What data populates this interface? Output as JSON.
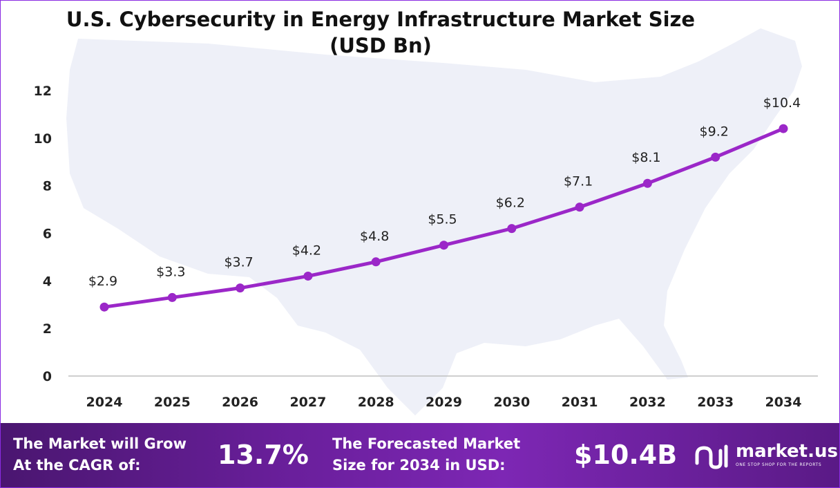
{
  "title": "U.S. Cybersecurity in Energy Infrastructure Market Size (USD Bn)",
  "colors": {
    "line": "#9b27c8",
    "map": "#eef0f8",
    "axis": "#bfbfbf",
    "footer": "#6a1f9c"
  },
  "chart_data": {
    "type": "line",
    "categories": [
      "2024",
      "2025",
      "2026",
      "2027",
      "2028",
      "2029",
      "2030",
      "2031",
      "2032",
      "2033",
      "2034"
    ],
    "values": [
      2.9,
      3.3,
      3.7,
      4.2,
      4.8,
      5.5,
      6.2,
      7.1,
      8.1,
      9.2,
      10.4
    ],
    "data_labels": [
      "$2.9",
      "$3.3",
      "$3.7",
      "$4.2",
      "$4.8",
      "$5.5",
      "$6.2",
      "$7.1",
      "$8.1",
      "$9.2",
      "$10.4"
    ],
    "yticks": [
      "0",
      "2",
      "4",
      "6",
      "8",
      "10",
      "12"
    ],
    "ylim": [
      0,
      12
    ],
    "grid": false,
    "legend": "none"
  },
  "footer": {
    "cagr_label_1": "The Market will Grow",
    "cagr_label_2": "At the CAGR of:",
    "cagr_value": "13.7%",
    "forecast_label_1": "The Forecasted Market",
    "forecast_label_2": "Size for 2034 in USD:",
    "forecast_value": "$10.4B",
    "logo_text": "market.us",
    "logo_tagline": "ONE STOP SHOP FOR THE REPORTS",
    "logo_icon": "market-us-logo-icon"
  }
}
